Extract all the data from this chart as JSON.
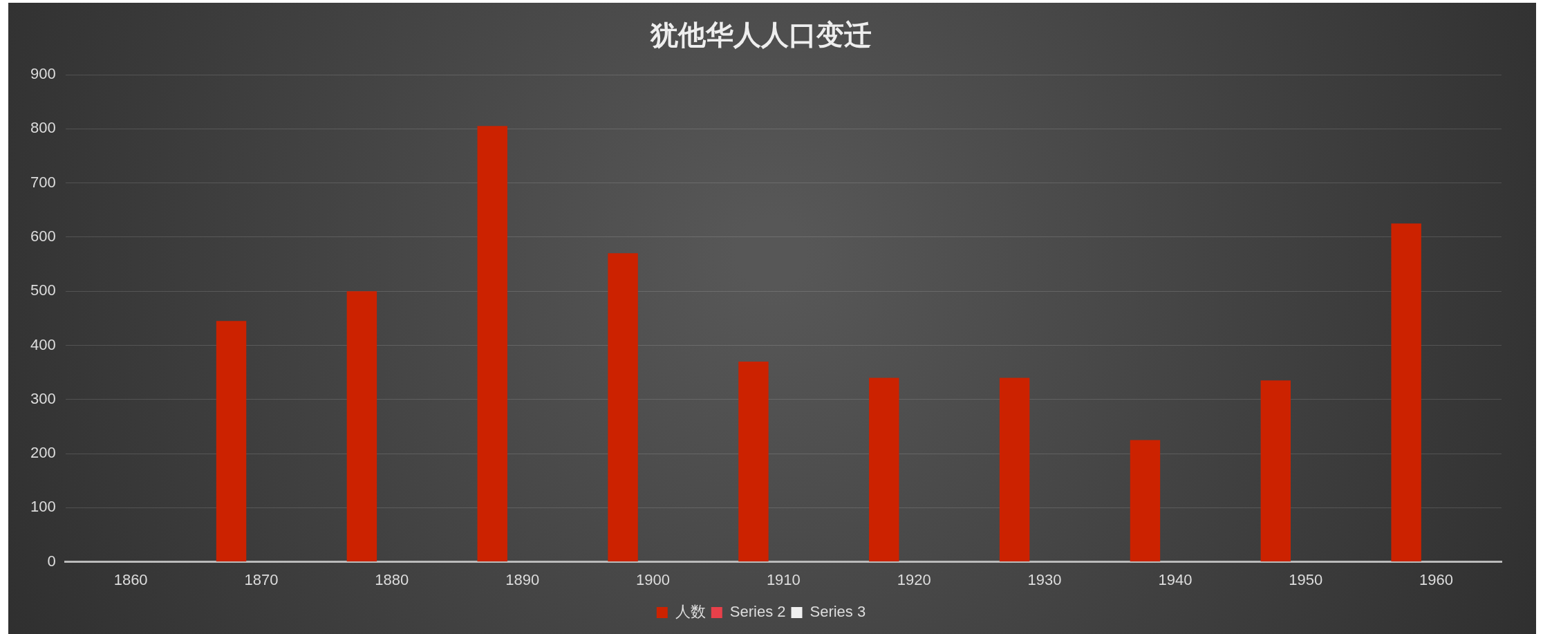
{
  "chart_data": {
    "type": "bar",
    "title": "犹他华人人口变迁",
    "categories": [
      "1860",
      "1870",
      "1880",
      "1890",
      "1900",
      "1910",
      "1920",
      "1930",
      "1940",
      "1950",
      "1960"
    ],
    "series": [
      {
        "name": "人数",
        "color": "#cc2200",
        "values": [
          null,
          445,
          500,
          805,
          570,
          370,
          340,
          340,
          225,
          335,
          625
        ]
      },
      {
        "name": "Series 2",
        "color": "#e8404a",
        "values": [
          null,
          null,
          null,
          null,
          null,
          null,
          null,
          null,
          null,
          null,
          null
        ]
      },
      {
        "name": "Series 3",
        "color": "#f0f0f0",
        "values": [
          null,
          null,
          null,
          null,
          null,
          null,
          null,
          null,
          null,
          null,
          null
        ]
      }
    ],
    "ylim": [
      0,
      900
    ],
    "yticks": [
      0,
      100,
      200,
      300,
      400,
      500,
      600,
      700,
      800,
      900
    ],
    "grid": "y",
    "legend": "bottom"
  }
}
